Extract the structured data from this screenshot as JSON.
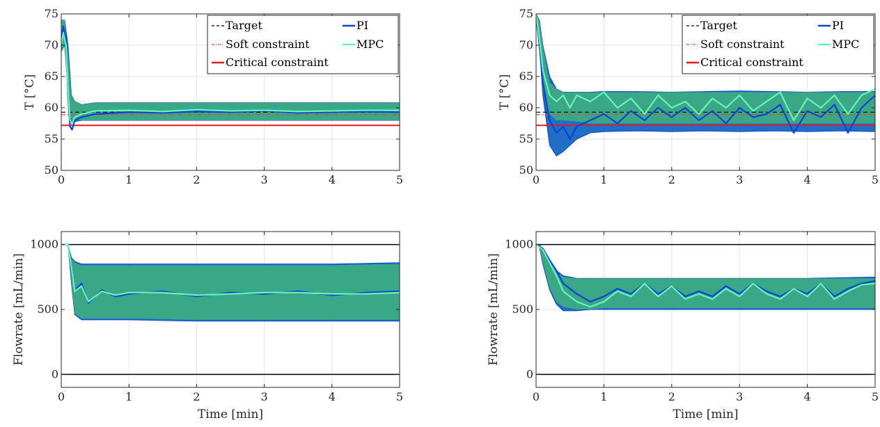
{
  "colors": {
    "pi": "#0c43d6",
    "pi_band": "#1f6fc7",
    "mpc": "#66f5b8",
    "band_overlap": "#3aa886",
    "target": "#000000",
    "soft": "#e8413c",
    "critical": "#e81a1a",
    "bound": "#000000",
    "grid": "#e3e3e3"
  },
  "chart_data": [
    {
      "id": "temp-left",
      "type": "line",
      "ylabel": "T [°C]",
      "xlim": [
        0,
        5
      ],
      "ylim": [
        50,
        75
      ],
      "xticks": [
        "0",
        "1",
        "2",
        "3",
        "4",
        "5"
      ],
      "yticks": [
        "50",
        "55",
        "60",
        "65",
        "70",
        "75"
      ],
      "legend": {
        "placement": "top-right",
        "entries": [
          "Target",
          "PI",
          "Soft constraint",
          "MPC",
          "Critical constraint"
        ]
      },
      "hlines": {
        "target": 59.3,
        "soft": 58.9,
        "critical": 57.2
      },
      "bands": {
        "pi": {
          "x": [
            0,
            0.05,
            0.1,
            0.15,
            0.2,
            0.3,
            0.5,
            1,
            2,
            3,
            4,
            5
          ],
          "low": [
            69,
            70,
            63,
            57.5,
            57.8,
            58,
            58,
            58,
            58,
            58,
            58,
            58
          ],
          "high": [
            74,
            74,
            70,
            62,
            61,
            60.5,
            60.8,
            60.8,
            60.8,
            60.8,
            60.8,
            60.8
          ]
        },
        "mpc": {
          "x": [
            0,
            0.05,
            0.1,
            0.15,
            0.2,
            0.3,
            0.5,
            1,
            2,
            3,
            4,
            5
          ],
          "low": [
            69,
            70,
            62,
            58,
            58,
            58,
            58,
            58,
            58,
            58,
            58,
            58
          ],
          "high": [
            74,
            74,
            69,
            62,
            61,
            60.5,
            60.8,
            60.8,
            60.8,
            60.8,
            60.8,
            60.8
          ]
        }
      },
      "series": [
        {
          "name": "PI",
          "x": [
            0,
            0.03,
            0.07,
            0.1,
            0.13,
            0.16,
            0.2,
            0.3,
            0.5,
            1,
            1.5,
            2,
            2.5,
            3,
            3.5,
            4,
            4.5,
            5
          ],
          "values": [
            71,
            73,
            71,
            62,
            57,
            56.5,
            58,
            58.5,
            59,
            59.3,
            59.2,
            59.4,
            59.3,
            59.5,
            59.2,
            59.3,
            59.4,
            59.3
          ]
        },
        {
          "name": "MPC",
          "x": [
            0,
            0.03,
            0.07,
            0.1,
            0.13,
            0.16,
            0.2,
            0.3,
            0.5,
            1,
            1.5,
            2,
            2.5,
            3,
            3.5,
            4,
            4.5,
            5
          ],
          "values": [
            70,
            72,
            70,
            63,
            58,
            57.5,
            58.5,
            59,
            59.5,
            59.6,
            59.4,
            59.7,
            59.5,
            59.6,
            59.4,
            59.5,
            59.6,
            59.6
          ]
        }
      ]
    },
    {
      "id": "temp-right",
      "type": "line",
      "ylabel": "T [°C]",
      "xlim": [
        0,
        5
      ],
      "ylim": [
        50,
        75
      ],
      "xticks": [
        "0",
        "1",
        "2",
        "3",
        "4",
        "5"
      ],
      "yticks": [
        "50",
        "55",
        "60",
        "65",
        "70",
        "75"
      ],
      "legend": {
        "placement": "top-right",
        "entries": [
          "Target",
          "PI",
          "Soft constraint",
          "MPC",
          "Critical constraint"
        ]
      },
      "hlines": {
        "target": 59.3,
        "soft": 58.9,
        "critical": 57.2
      },
      "bands": {
        "pi": {
          "x": [
            0,
            0.05,
            0.1,
            0.2,
            0.3,
            0.4,
            0.6,
            0.8,
            1,
            1.5,
            2,
            2.5,
            3,
            3.5,
            4,
            4.5,
            5
          ],
          "low": [
            74,
            70,
            62,
            54,
            52.3,
            53,
            55,
            56,
            56.2,
            56.3,
            56.2,
            56.3,
            56.2,
            56.3,
            56.2,
            56.3,
            56.2
          ],
          "high": [
            75,
            74,
            70,
            65,
            63,
            62.5,
            62.5,
            62.5,
            62.6,
            62.6,
            62.5,
            62.6,
            62.7,
            62.6,
            62.5,
            62.6,
            62.6
          ]
        },
        "mpc": {
          "x": [
            0,
            0.05,
            0.1,
            0.2,
            0.3,
            0.4,
            0.6,
            0.8,
            1,
            1.5,
            2,
            2.5,
            3,
            3.5,
            4,
            4.5,
            5
          ],
          "low": [
            74,
            70,
            63,
            59,
            58,
            58,
            57.8,
            57.5,
            57.5,
            57.5,
            57.5,
            57.5,
            57.5,
            57.5,
            57.5,
            57.5,
            57.5
          ],
          "high": [
            75,
            74,
            70,
            64,
            63,
            62.5,
            62.5,
            62.5,
            62.5,
            62.5,
            62.5,
            62.5,
            62.5,
            62.5,
            62.5,
            62.5,
            62.5
          ]
        }
      },
      "series": [
        {
          "name": "PI",
          "x": [
            0,
            0.05,
            0.1,
            0.2,
            0.3,
            0.4,
            0.5,
            0.6,
            0.8,
            1,
            1.2,
            1.4,
            1.6,
            1.8,
            2,
            2.2,
            2.4,
            2.6,
            2.8,
            3,
            3.2,
            3.4,
            3.6,
            3.8,
            4,
            4.2,
            4.4,
            4.6,
            4.8,
            5
          ],
          "values": [
            75,
            70,
            64,
            58,
            56,
            57,
            55,
            57,
            58,
            59,
            57.5,
            59.5,
            58,
            60,
            58.5,
            60,
            58,
            59.5,
            57.5,
            60,
            58.5,
            59,
            60.5,
            56,
            59.5,
            58.5,
            60.5,
            56,
            60,
            62
          ]
        },
        {
          "name": "MPC",
          "x": [
            0,
            0.05,
            0.1,
            0.2,
            0.3,
            0.4,
            0.5,
            0.6,
            0.8,
            1,
            1.2,
            1.4,
            1.6,
            1.8,
            2,
            2.2,
            2.4,
            2.6,
            2.8,
            3,
            3.2,
            3.4,
            3.6,
            3.8,
            4,
            4.2,
            4.4,
            4.6,
            4.8,
            5
          ],
          "values": [
            75,
            71,
            66,
            62,
            61,
            62,
            60,
            62,
            61,
            62.5,
            60,
            61.5,
            59,
            62,
            60,
            61,
            59,
            61.5,
            60,
            62,
            59.5,
            61,
            62.5,
            58,
            61.5,
            60,
            62,
            59,
            62,
            63
          ]
        }
      ]
    },
    {
      "id": "flow-left",
      "type": "line",
      "xlabel": "Time [min]",
      "ylabel": "Flowrate [mL/min]",
      "xlim": [
        0,
        5
      ],
      "ylim": [
        -100,
        1100
      ],
      "xticks": [
        "0",
        "1",
        "2",
        "3",
        "4",
        "5"
      ],
      "yticks": [
        "0",
        "500",
        "1000"
      ],
      "hlines": {
        "upper": 1000,
        "lower": 0
      },
      "bands": {
        "pi": {
          "x": [
            0,
            0.1,
            0.15,
            0.2,
            0.3,
            0.5,
            1,
            2,
            3,
            4,
            5
          ],
          "low": [
            1000,
            1000,
            700,
            460,
            420,
            420,
            420,
            410,
            410,
            410,
            410
          ],
          "high": [
            1000,
            1000,
            900,
            870,
            850,
            850,
            850,
            850,
            850,
            850,
            860
          ]
        },
        "mpc": {
          "x": [
            0,
            0.1,
            0.15,
            0.2,
            0.3,
            0.5,
            1,
            2,
            3,
            4,
            5
          ],
          "low": [
            1000,
            1000,
            700,
            470,
            430,
            430,
            430,
            420,
            420,
            420,
            420
          ],
          "high": [
            1000,
            1000,
            890,
            860,
            840,
            840,
            840,
            840,
            840,
            840,
            850
          ]
        }
      },
      "series": [
        {
          "name": "PI",
          "x": [
            0,
            0.1,
            0.15,
            0.2,
            0.3,
            0.4,
            0.6,
            0.8,
            1,
            1.5,
            2,
            2.5,
            3,
            3.5,
            4,
            4.5,
            5
          ],
          "values": [
            1000,
            1000,
            800,
            650,
            700,
            550,
            650,
            600,
            620,
            640,
            600,
            630,
            620,
            640,
            610,
            630,
            640
          ]
        },
        {
          "name": "MPC",
          "x": [
            0,
            0.1,
            0.15,
            0.2,
            0.3,
            0.4,
            0.6,
            0.8,
            1,
            1.5,
            2,
            2.5,
            3,
            3.5,
            4,
            4.5,
            5
          ],
          "values": [
            1000,
            1000,
            820,
            640,
            680,
            560,
            640,
            610,
            630,
            630,
            610,
            620,
            630,
            630,
            620,
            620,
            630
          ]
        }
      ]
    },
    {
      "id": "flow-right",
      "type": "line",
      "xlabel": "Time [min]",
      "ylabel": "Flowrate [mL/min]",
      "xlim": [
        0,
        5
      ],
      "ylim": [
        -100,
        1100
      ],
      "xticks": [
        "0",
        "1",
        "2",
        "3",
        "4",
        "5"
      ],
      "yticks": [
        "0",
        "500",
        "1000"
      ],
      "hlines": {
        "upper": 1000,
        "lower": 0
      },
      "bands": {
        "pi": {
          "x": [
            0,
            0.05,
            0.1,
            0.2,
            0.3,
            0.4,
            0.6,
            0.8,
            1,
            2,
            3,
            4,
            5
          ],
          "low": [
            1000,
            980,
            850,
            650,
            540,
            490,
            490,
            500,
            500,
            500,
            500,
            500,
            500
          ],
          "high": [
            1000,
            1000,
            960,
            880,
            800,
            760,
            740,
            740,
            740,
            740,
            740,
            740,
            750
          ]
        },
        "mpc": {
          "x": [
            0,
            0.05,
            0.1,
            0.2,
            0.3,
            0.4,
            0.6,
            0.8,
            1,
            2,
            3,
            4,
            5
          ],
          "low": [
            1000,
            980,
            860,
            660,
            560,
            520,
            500,
            500,
            510,
            510,
            510,
            510,
            510
          ],
          "high": [
            1000,
            1000,
            950,
            870,
            790,
            750,
            740,
            740,
            740,
            740,
            740,
            740,
            740
          ]
        }
      },
      "series": [
        {
          "name": "PI",
          "x": [
            0,
            0.1,
            0.2,
            0.3,
            0.4,
            0.6,
            0.8,
            1,
            1.2,
            1.4,
            1.6,
            1.8,
            2,
            2.2,
            2.4,
            2.6,
            2.8,
            3,
            3.2,
            3.4,
            3.6,
            3.8,
            4,
            4.2,
            4.4,
            4.6,
            4.8,
            5
          ],
          "values": [
            1000,
            970,
            880,
            800,
            700,
            620,
            560,
            600,
            660,
            620,
            700,
            620,
            680,
            600,
            640,
            600,
            680,
            620,
            700,
            640,
            600,
            660,
            620,
            700,
            600,
            660,
            700,
            720
          ]
        },
        {
          "name": "MPC",
          "x": [
            0,
            0.1,
            0.2,
            0.3,
            0.4,
            0.6,
            0.8,
            1,
            1.2,
            1.4,
            1.6,
            1.8,
            2,
            2.2,
            2.4,
            2.6,
            2.8,
            3,
            3.2,
            3.4,
            3.6,
            3.8,
            4,
            4.2,
            4.4,
            4.6,
            4.8,
            5
          ],
          "values": [
            1000,
            960,
            860,
            760,
            640,
            560,
            520,
            560,
            640,
            600,
            700,
            600,
            680,
            580,
            620,
            580,
            660,
            600,
            700,
            620,
            580,
            660,
            600,
            700,
            580,
            640,
            690,
            700
          ]
        }
      ]
    }
  ]
}
